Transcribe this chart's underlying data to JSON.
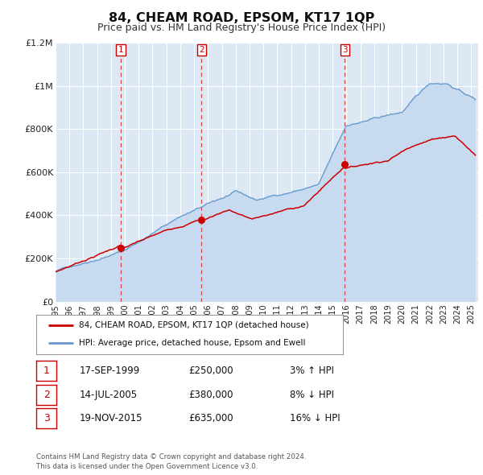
{
  "title": "84, CHEAM ROAD, EPSOM, KT17 1QP",
  "subtitle": "Price paid vs. HM Land Registry's House Price Index (HPI)",
  "title_fontsize": 11.5,
  "subtitle_fontsize": 9,
  "bg_color": "#ffffff",
  "plot_bg_color": "#dce9f5",
  "grid_color": "#ffffff",
  "ylabel_color": "#222222",
  "xlabel_color": "#222222",
  "ylim": [
    0,
    1200000
  ],
  "xlim_start": 1995.0,
  "xlim_end": 2025.5,
  "yticks": [
    0,
    200000,
    400000,
    600000,
    800000,
    1000000,
    1200000
  ],
  "ytick_labels": [
    "£0",
    "£200K",
    "£400K",
    "£600K",
    "£800K",
    "£1M",
    "£1.2M"
  ],
  "xtick_years": [
    1995,
    1996,
    1997,
    1998,
    1999,
    2000,
    2001,
    2002,
    2003,
    2004,
    2005,
    2006,
    2007,
    2008,
    2009,
    2010,
    2011,
    2012,
    2013,
    2014,
    2015,
    2016,
    2017,
    2018,
    2019,
    2020,
    2021,
    2022,
    2023,
    2024,
    2025
  ],
  "sale_color": "#cc0000",
  "hpi_color": "#6699cc",
  "hpi_fill_color": "#c8daf0",
  "vline_color": "#dd3333",
  "transactions": [
    {
      "num": 1,
      "date_label": "17-SEP-1999",
      "year": 1999.71,
      "price": 250000,
      "pct": "3%",
      "direction": "↑"
    },
    {
      "num": 2,
      "date_label": "14-JUL-2005",
      "year": 2005.53,
      "price": 380000,
      "pct": "8%",
      "direction": "↓"
    },
    {
      "num": 3,
      "date_label": "19-NOV-2015",
      "year": 2015.88,
      "price": 635000,
      "pct": "16%",
      "direction": "↓"
    }
  ],
  "legend_address": "84, CHEAM ROAD, EPSOM, KT17 1QP (detached house)",
  "legend_hpi": "HPI: Average price, detached house, Epsom and Ewell",
  "footer1": "Contains HM Land Registry data © Crown copyright and database right 2024.",
  "footer2": "This data is licensed under the Open Government Licence v3.0."
}
